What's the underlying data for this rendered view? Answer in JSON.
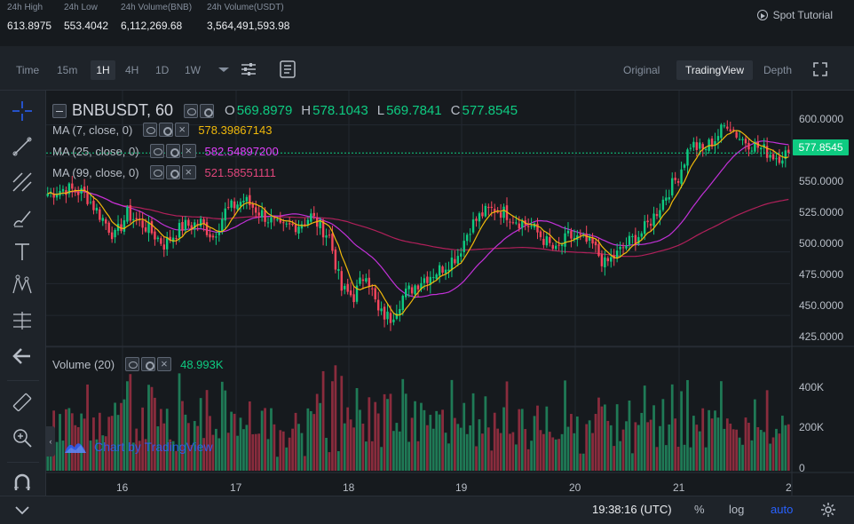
{
  "stats": [
    {
      "label": "24h High",
      "value": "613.8975"
    },
    {
      "label": "24h Low",
      "value": "553.4042"
    },
    {
      "label": "24h Volume(BNB)",
      "value": "6,112,269.68"
    },
    {
      "label": "24h Volume(USDT)",
      "value": "3,564,491,593.98"
    }
  ],
  "spot_tutorial": "Spot Tutorial",
  "toolbar": {
    "intervals": [
      "Time",
      "15m",
      "1H",
      "4H",
      "1D",
      "1W"
    ],
    "active_interval": "1H",
    "views": [
      "Original",
      "TradingView",
      "Depth"
    ],
    "active_view": "TradingView"
  },
  "legend": {
    "symbol": "BNBUSDT, 60",
    "ohlc": [
      {
        "label": "O",
        "value": "569.8979"
      },
      {
        "label": "H",
        "value": "578.1043"
      },
      {
        "label": "L",
        "value": "569.7841"
      },
      {
        "label": "C",
        "value": "577.8545"
      }
    ],
    "ma": [
      {
        "label": "MA (7, close, 0)",
        "value": "578.39867143",
        "color": "#f0b90b"
      },
      {
        "label": "MA (25, close, 0)",
        "value": "582.54897200",
        "color": "#e040fb"
      },
      {
        "label": "MA (99, close, 0)",
        "value": "521.58551111",
        "color": "#c2185b"
      }
    ],
    "volume_label": "Volume (20)",
    "volume_value": "48.993K"
  },
  "price_tag": "577.8545",
  "y_ticks": [
    "600.0000",
    "575.0000",
    "550.0000",
    "525.0000",
    "500.0000",
    "475.0000",
    "450.0000",
    "425.0000"
  ],
  "volume_ticks": [
    "400K",
    "200K",
    "0"
  ],
  "x_ticks": [
    "16",
    "17",
    "18",
    "19",
    "20",
    "21",
    "2"
  ],
  "watermark": "Chart by TradingView",
  "statusbar": {
    "time": "19:38:16 (UTC)",
    "percent": "%",
    "log": "log",
    "auto": "auto"
  },
  "colors": {
    "up": "#0ecb81",
    "down": "#f6465d",
    "up_volume": "#1f7a56",
    "down_volume": "#8a2c3d",
    "accent": "#2962ff"
  },
  "chart_data": {
    "type": "candlestick",
    "price_range": [
      420,
      620
    ],
    "volume_range": [
      0,
      540000
    ],
    "last_price": 577.8545,
    "anchors": [
      [
        0,
        546
      ],
      [
        6,
        550
      ],
      [
        12,
        546
      ],
      [
        18,
        526
      ],
      [
        22,
        512
      ],
      [
        26,
        530
      ],
      [
        32,
        520
      ],
      [
        38,
        506
      ],
      [
        44,
        520
      ],
      [
        50,
        523
      ],
      [
        54,
        512
      ],
      [
        58,
        532
      ],
      [
        64,
        541
      ],
      [
        70,
        530
      ],
      [
        76,
        518
      ],
      [
        82,
        522
      ],
      [
        86,
        528
      ],
      [
        92,
        512
      ],
      [
        96,
        470
      ],
      [
        100,
        465
      ],
      [
        104,
        485
      ],
      [
        108,
        452
      ],
      [
        112,
        448
      ],
      [
        116,
        465
      ],
      [
        122,
        478
      ],
      [
        128,
        486
      ],
      [
        134,
        498
      ],
      [
        138,
        520
      ],
      [
        142,
        530
      ],
      [
        146,
        534
      ],
      [
        150,
        530
      ],
      [
        154,
        524
      ],
      [
        158,
        520
      ],
      [
        162,
        510
      ],
      [
        166,
        500
      ],
      [
        170,
        512
      ],
      [
        174,
        510
      ],
      [
        178,
        505
      ],
      [
        182,
        490
      ],
      [
        186,
        498
      ],
      [
        190,
        508
      ],
      [
        194,
        515
      ],
      [
        198,
        528
      ],
      [
        202,
        545
      ],
      [
        206,
        560
      ],
      [
        210,
        585
      ],
      [
        214,
        580
      ],
      [
        218,
        589
      ],
      [
        222,
        602
      ],
      [
        226,
        590
      ],
      [
        230,
        585
      ],
      [
        234,
        580
      ],
      [
        238,
        575
      ],
      [
        242,
        577.9
      ]
    ],
    "ma": [
      {
        "name": "MA (7, close, 0)",
        "period": 7
      },
      {
        "name": "MA (25, close, 0)",
        "period": 25
      },
      {
        "name": "MA (99, close, 0)",
        "period": 99
      }
    ]
  }
}
